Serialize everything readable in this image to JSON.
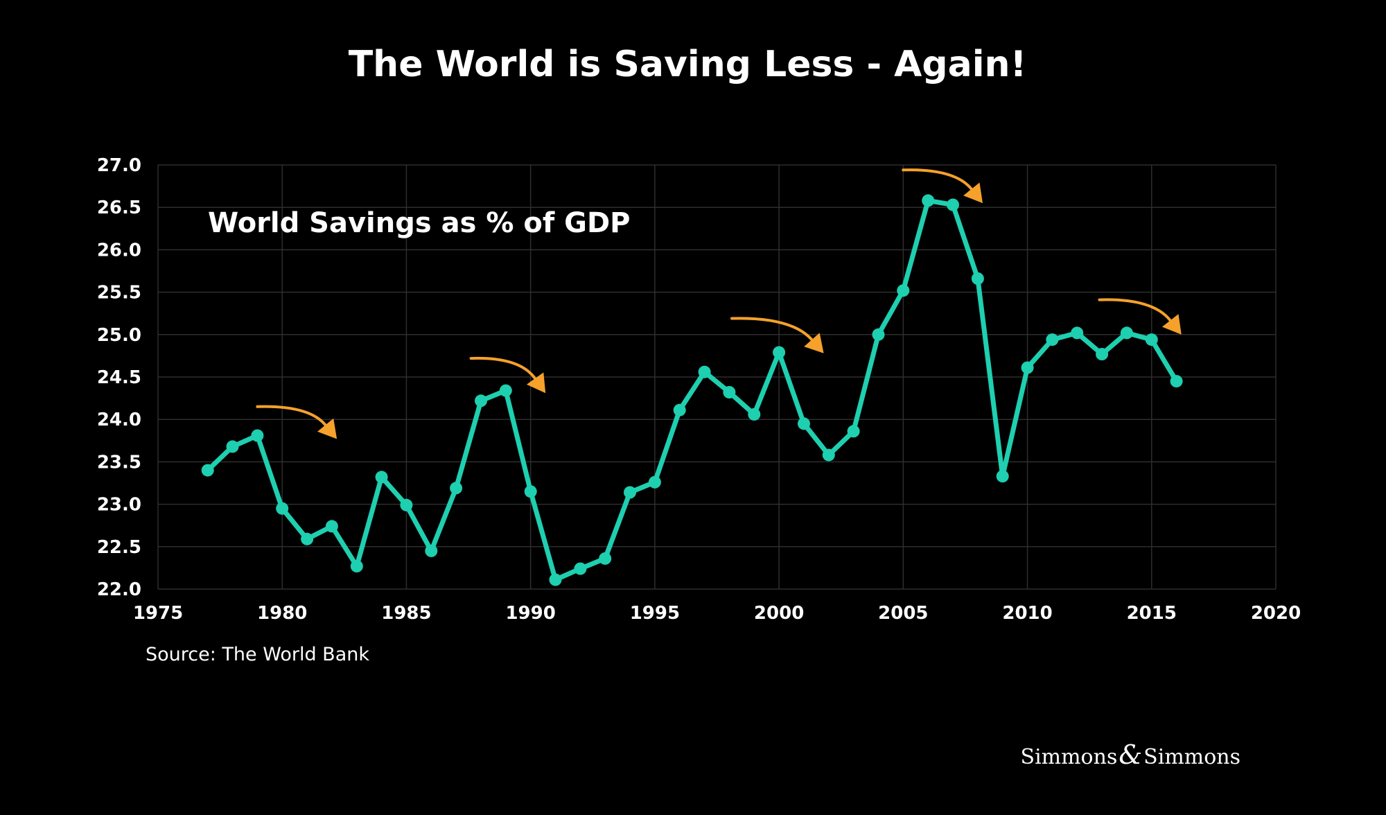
{
  "chart_data": {
    "type": "line",
    "title": "The World is Saving Less - Again!",
    "annotation": "World Savings as % of GDP",
    "source": "Source: The World Bank",
    "brand": {
      "left": "Simmons",
      "amp": "&",
      "right": "Simmons"
    },
    "xlabel": "",
    "ylabel": "",
    "xlim": [
      1975,
      2020
    ],
    "ylim": [
      22.0,
      27.0
    ],
    "xticks": [
      "1975",
      "1980",
      "1985",
      "1990",
      "1995",
      "2000",
      "2005",
      "2010",
      "2015",
      "2020"
    ],
    "yticks": [
      "22.0",
      "22.5",
      "23.0",
      "23.5",
      "24.0",
      "24.5",
      "25.0",
      "25.5",
      "26.0",
      "26.5",
      "27.0"
    ],
    "grid": true,
    "colors": {
      "background": "#000000",
      "line": "#1ecfb0",
      "arrow": "#f5a12c",
      "grid": "#2e2e2e",
      "text": "#ffffff"
    },
    "series": [
      {
        "x": [
          1977,
          1978,
          1979,
          1980,
          1981,
          1982,
          1983,
          1984,
          1985,
          1986,
          1987,
          1988,
          1989,
          1990,
          1991,
          1992,
          1993,
          1994,
          1995,
          1996,
          1997,
          1998,
          1999,
          2000,
          2001,
          2002,
          2003,
          2004,
          2005,
          2006,
          2007,
          2008,
          2009,
          2010,
          2011,
          2012,
          2013,
          2014,
          2015,
          2016
        ],
        "values": [
          23.4,
          23.68,
          23.81,
          22.95,
          22.59,
          22.74,
          22.27,
          23.32,
          22.99,
          22.45,
          23.19,
          24.22,
          24.34,
          23.15,
          22.11,
          22.24,
          22.36,
          23.14,
          23.26,
          24.11,
          24.56,
          24.32,
          24.06,
          24.79,
          23.95,
          23.58,
          23.86,
          25.0,
          25.52,
          26.58,
          26.53,
          25.66,
          23.33,
          24.61,
          24.94,
          25.02,
          24.77,
          25.02,
          24.94,
          24.45
        ]
      }
    ],
    "arrows": [
      {
        "x0": 1979.0,
        "y0": 24.15,
        "x1": 1982.2,
        "y1": 23.77
      },
      {
        "x0": 1987.6,
        "y0": 24.72,
        "x1": 1990.6,
        "y1": 24.31
      },
      {
        "x0": 1998.1,
        "y0": 25.19,
        "x1": 2001.8,
        "y1": 24.78
      },
      {
        "x0": 2005.0,
        "y0": 26.94,
        "x1": 2008.2,
        "y1": 26.55
      },
      {
        "x0": 2012.9,
        "y0": 25.41,
        "x1": 2016.2,
        "y1": 25.0
      }
    ]
  }
}
